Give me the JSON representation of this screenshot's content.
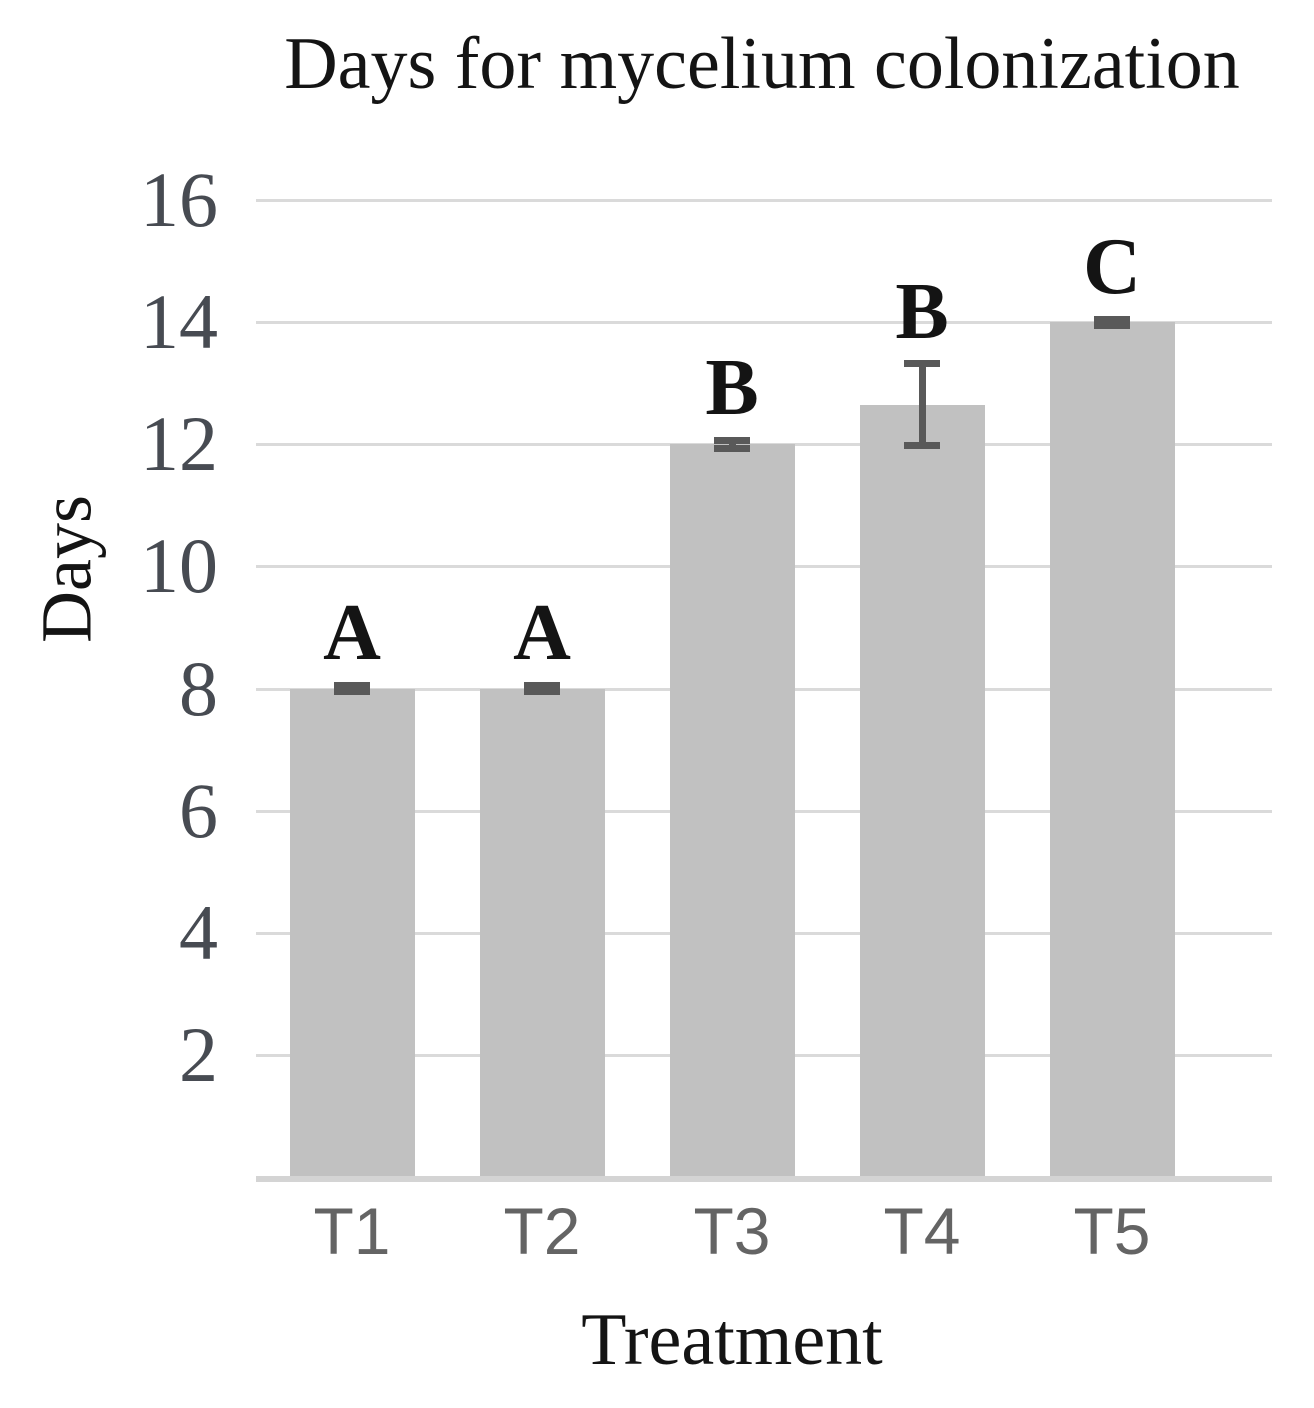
{
  "chart_data": {
    "type": "bar",
    "title": "Days for mycelium colonization",
    "xlabel": "Treatment",
    "ylabel": "Days",
    "categories": [
      "T1",
      "T2",
      "T3",
      "T4",
      "T5"
    ],
    "values": [
      8,
      8,
      12,
      12.65,
      14
    ],
    "errors": [
      0.05,
      0.05,
      0.07,
      0.67,
      0.05
    ],
    "significance_letters": [
      "A",
      "A",
      "B",
      "B",
      "C"
    ],
    "ylim": [
      0,
      16
    ],
    "yticks": [
      2,
      4,
      6,
      8,
      10,
      12,
      14,
      16
    ],
    "grid": "horizontal",
    "legend": "none"
  },
  "colors": {
    "bar_fill": "#c1c1c1",
    "error_bar": "#595959",
    "gridline": "#dadada",
    "axis_line": "#d4d4d4",
    "title_text": "#141414",
    "axis_title_text": "#141414",
    "significance_letter_text": "#141414",
    "y_tick_text": "#474b52",
    "x_tick_text": "#646464"
  }
}
